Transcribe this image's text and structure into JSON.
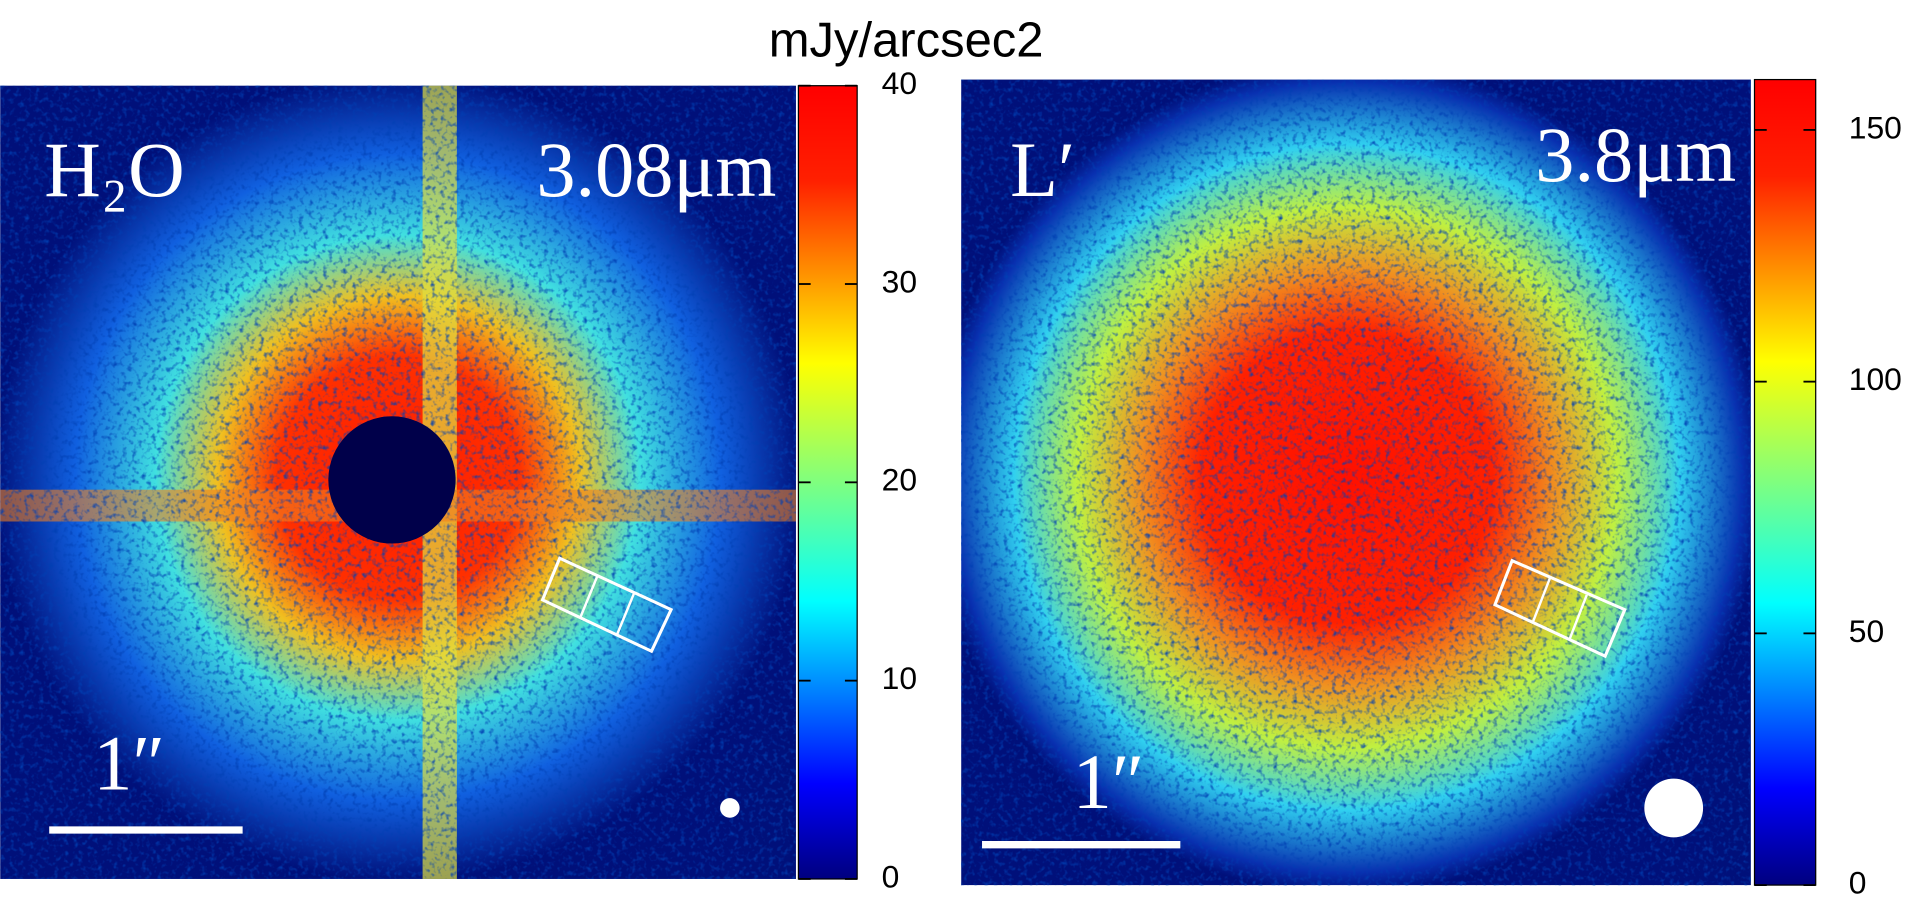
{
  "colorbar_label": "mJy/arcsec2",
  "chart_data": [
    {
      "type": "image",
      "title": "H₂O",
      "subtitle": "3.08μm",
      "scale_label": "1″",
      "clim": [
        0,
        40
      ],
      "cticks": [
        0,
        10,
        20,
        30,
        40
      ]
    },
    {
      "type": "image",
      "title": "L′",
      "subtitle": "3.8μm",
      "scale_label": "1″",
      "clim": [
        0,
        160
      ],
      "cticks": [
        0,
        50,
        100,
        150
      ]
    }
  ]
}
